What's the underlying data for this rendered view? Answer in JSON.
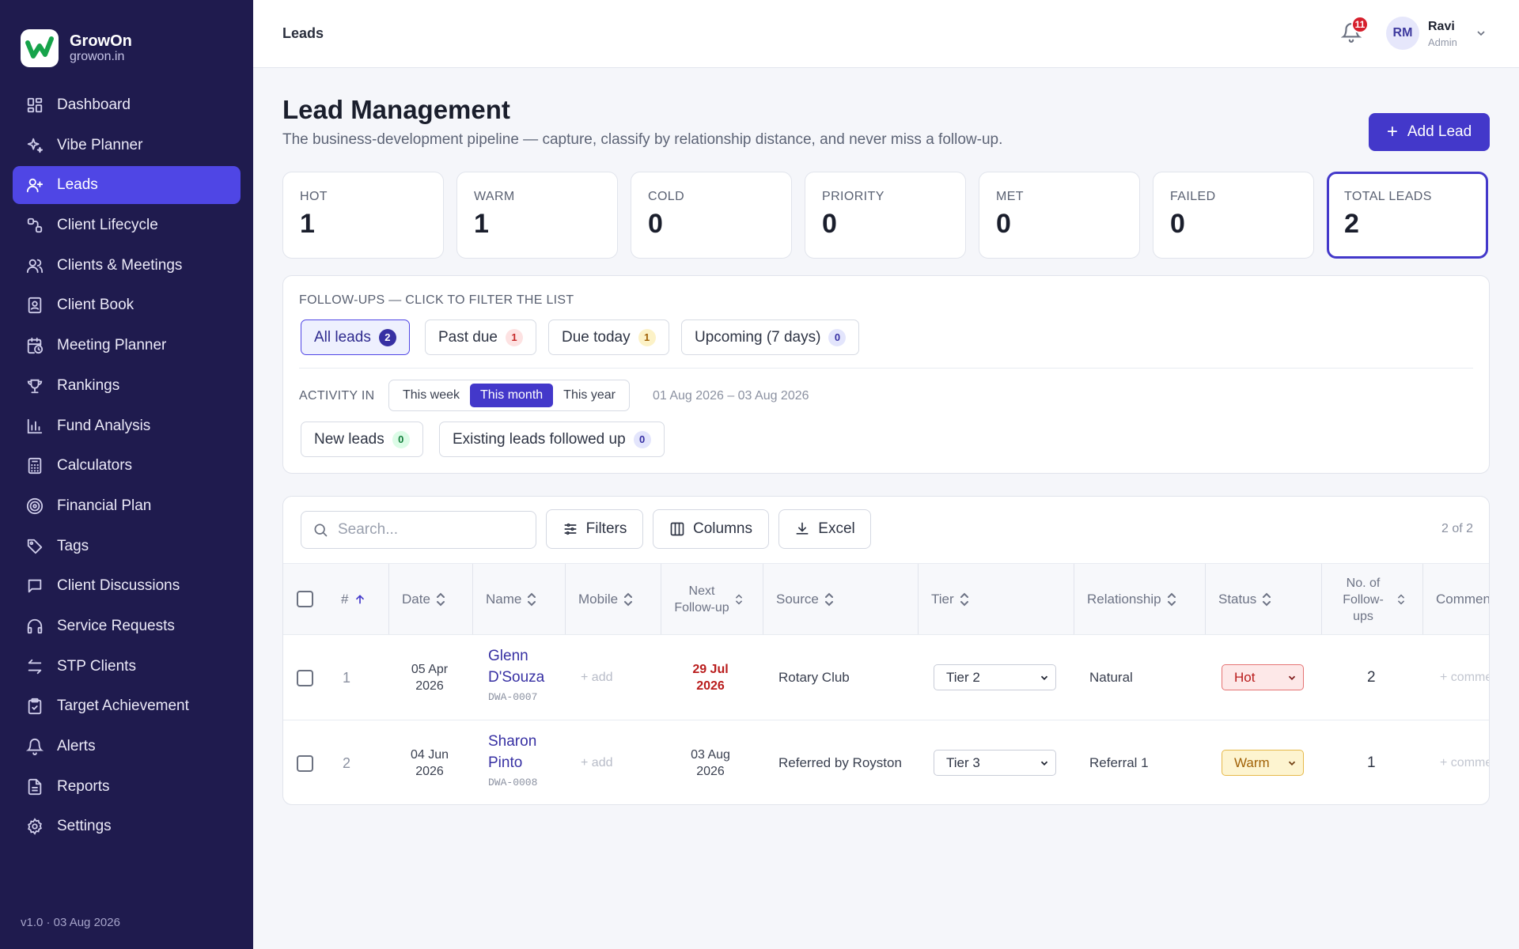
{
  "app": {
    "name": "GrowOn",
    "domain": "growon.in",
    "version": "v1.0 · 03 Aug 2026"
  },
  "sidebar": {
    "items": [
      {
        "label": "Dashboard",
        "icon": "dashboard-icon"
      },
      {
        "label": "Vibe Planner",
        "icon": "sparkles-icon"
      },
      {
        "label": "Leads",
        "icon": "user-plus-icon",
        "active": true
      },
      {
        "label": "Client Lifecycle",
        "icon": "lifecycle-icon"
      },
      {
        "label": "Clients & Meetings",
        "icon": "users-icon"
      },
      {
        "label": "Client Book",
        "icon": "contact-book-icon"
      },
      {
        "label": "Meeting Planner",
        "icon": "calendar-clock-icon"
      },
      {
        "label": "Rankings",
        "icon": "trophy-icon"
      },
      {
        "label": "Fund Analysis",
        "icon": "bar-chart-icon"
      },
      {
        "label": "Calculators",
        "icon": "calculator-icon"
      },
      {
        "label": "Financial Plan",
        "icon": "target-icon"
      },
      {
        "label": "Tags",
        "icon": "tag-icon"
      },
      {
        "label": "Client Discussions",
        "icon": "message-icon"
      },
      {
        "label": "Service Requests",
        "icon": "headphones-icon"
      },
      {
        "label": "STP Clients",
        "icon": "transfer-icon"
      },
      {
        "label": "Target Achievement",
        "icon": "clipboard-check-icon"
      },
      {
        "label": "Alerts",
        "icon": "bell-icon"
      },
      {
        "label": "Reports",
        "icon": "file-text-icon"
      },
      {
        "label": "Settings",
        "icon": "gear-icon"
      }
    ]
  },
  "header": {
    "breadcrumb": "Leads",
    "notifications": "11",
    "user": {
      "initials": "RM",
      "name": "Ravi",
      "role": "Admin"
    }
  },
  "page": {
    "title": "Lead Management",
    "subtitle": "The business-development pipeline — capture, classify by relationship distance, and never miss a follow-up.",
    "add_button": "Add Lead"
  },
  "stats": [
    {
      "label": "HOT",
      "value": "1"
    },
    {
      "label": "WARM",
      "value": "1"
    },
    {
      "label": "COLD",
      "value": "0"
    },
    {
      "label": "PRIORITY",
      "value": "0"
    },
    {
      "label": "MET",
      "value": "0"
    },
    {
      "label": "FAILED",
      "value": "0"
    },
    {
      "label": "TOTAL LEADS",
      "value": "2",
      "selected": true
    }
  ],
  "followups": {
    "label": "FOLLOW-UPS — CLICK TO FILTER THE LIST",
    "chips": [
      {
        "label": "All leads",
        "count": "2"
      },
      {
        "label": "Past due",
        "count": "1"
      },
      {
        "label": "Due today",
        "count": "1"
      },
      {
        "label": "Upcoming (7 days)",
        "count": "0"
      }
    ]
  },
  "activity": {
    "label": "ACTIVITY IN",
    "options": [
      "This week",
      "This month",
      "This year"
    ],
    "selected": "This month",
    "range": "01 Aug 2026 – 03 Aug 2026",
    "chips": [
      {
        "label": "New leads",
        "count": "0"
      },
      {
        "label": "Existing leads followed up",
        "count": "0"
      }
    ]
  },
  "toolbar": {
    "search_placeholder": "Search...",
    "filters": "Filters",
    "columns": "Columns",
    "excel": "Excel",
    "count": "2 of 2"
  },
  "table": {
    "headers": {
      "num": "#",
      "date": "Date",
      "name": "Name",
      "mobile": "Mobile",
      "next_followup": "Next Follow-up",
      "source": "Source",
      "tier": "Tier",
      "relationship": "Relationship",
      "status": "Status",
      "followups": "No. of Follow-ups",
      "comments": "Comments"
    },
    "rows": [
      {
        "num": "1",
        "date": "05 Apr 2026",
        "name": "Glenn D'Souza",
        "id": "DWA-0007",
        "mobile": "+ add",
        "next_followup": "29 Jul 2026",
        "source": "Rotary Club",
        "tier": "Tier 2",
        "relationship": "Natural",
        "status": "Hot",
        "followups": "2",
        "comment": "+ comment"
      },
      {
        "num": "2",
        "date": "04 Jun 2026",
        "name": "Sharon Pinto",
        "id": "DWA-0008",
        "mobile": "+ add",
        "next_followup": "03 Aug 2026",
        "source": "Referred by Royston",
        "tier": "Tier 3",
        "relationship": "Referral 1",
        "status": "Warm",
        "followups": "1",
        "comment": "+ comment"
      }
    ]
  }
}
